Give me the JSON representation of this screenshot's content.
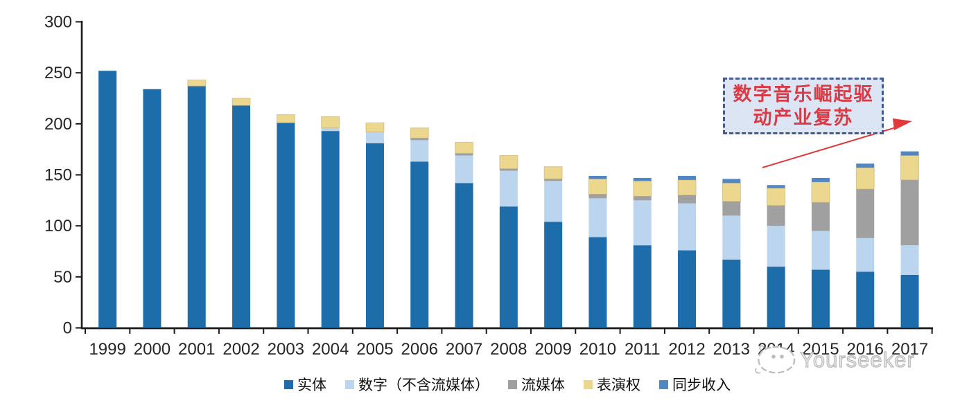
{
  "chart_data": {
    "type": "bar",
    "stacked": true,
    "title": "",
    "xlabel": "",
    "ylabel": "",
    "ylim": [
      0,
      300
    ],
    "ytick_interval": 50,
    "yticks": [
      "0",
      "50",
      "100",
      "150",
      "200",
      "250",
      "300"
    ],
    "grid": false,
    "legend_position": "bottom",
    "categories": [
      "1999",
      "2000",
      "2001",
      "2002",
      "2003",
      "2004",
      "2005",
      "2006",
      "2007",
      "2008",
      "2009",
      "2010",
      "2011",
      "2012",
      "2013",
      "2014",
      "2015",
      "2016",
      "2017"
    ],
    "series": [
      {
        "name": "实体",
        "color": "#1e6dab",
        "values": [
          252,
          234,
          237,
          218,
          201,
          193,
          181,
          163,
          142,
          119,
          104,
          89,
          81,
          76,
          67,
          60,
          57,
          55,
          52
        ]
      },
      {
        "name": "数字（不含流媒体）",
        "color": "#bcd5ee",
        "values": [
          0,
          0,
          0,
          0,
          0,
          3,
          11,
          21,
          27,
          35,
          40,
          38,
          44,
          46,
          43,
          40,
          38,
          33,
          29
        ]
      },
      {
        "name": "流媒体",
        "color": "#a0a0a0",
        "values": [
          0,
          0,
          0,
          0,
          0,
          0,
          0,
          2,
          2,
          2,
          2,
          4,
          4,
          8,
          14,
          20,
          28,
          48,
          64
        ]
      },
      {
        "name": "表演权",
        "color": "#ecd78f",
        "values": [
          0,
          0,
          6,
          7,
          8,
          11,
          9,
          10,
          11,
          13,
          12,
          15,
          15,
          15,
          18,
          17,
          20,
          21,
          24
        ]
      },
      {
        "name": "同步收入",
        "color": "#4f86c4",
        "values": [
          0,
          0,
          0,
          0,
          0,
          0,
          0,
          0,
          0,
          0,
          0,
          3,
          3,
          4,
          4,
          3,
          4,
          4,
          4
        ]
      }
    ],
    "totals": [
      252,
      234,
      243,
      225,
      209,
      207,
      201,
      196,
      182,
      169,
      158,
      149,
      147,
      149,
      146,
      140,
      147,
      161,
      173
    ]
  },
  "annotation": {
    "text": "数字音乐崛起驱动产业复苏",
    "line1": "数字音乐崛起驱",
    "line2": "动产业复苏",
    "box_fill": "#dbe5f3",
    "box_border": "#45588f",
    "text_color": "#d93a45",
    "arrow_color": "#e2383c"
  },
  "watermark": {
    "text": "Yourseeker",
    "color": "#c6c6c6"
  },
  "axis": {
    "line_color": "#1a1a1a",
    "label_color": "#262626"
  }
}
